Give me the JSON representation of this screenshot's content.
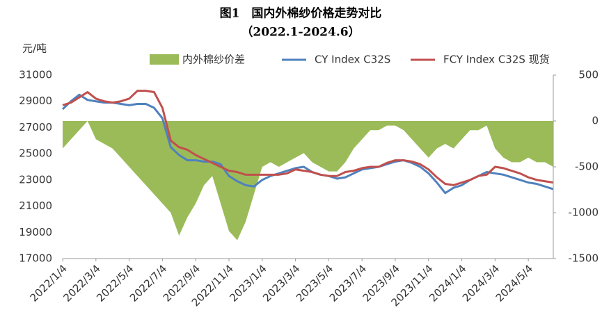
{
  "chart_data": {
    "type": "line",
    "title": "图1　国内外棉纱价格走势对比",
    "subtitle": "（2022.1-2024.6）",
    "y_label": "元/吨",
    "categories": [
      "2022/1/4",
      null,
      null,
      null,
      "2022/3/4",
      null,
      null,
      null,
      "2022/5/4",
      null,
      null,
      null,
      "2022/7/4",
      null,
      null,
      null,
      "2022/9/4",
      null,
      null,
      null,
      "2022/11/4",
      null,
      null,
      null,
      "2023/1/4",
      null,
      null,
      null,
      "2023/3/4",
      null,
      null,
      null,
      "2023/5/4",
      null,
      null,
      null,
      "2023/7/4",
      null,
      null,
      null,
      "2023/9/4",
      null,
      null,
      null,
      "2023/11/4",
      null,
      null,
      null,
      "2024/1/4",
      null,
      null,
      null,
      "2024/3/4",
      null,
      null,
      null,
      "2024/5/4",
      null,
      null,
      null
    ],
    "ylim": [
      17000,
      31000
    ],
    "yticks": [
      17000,
      19000,
      21000,
      23000,
      25000,
      27000,
      29000,
      31000
    ],
    "y2lim": [
      -1500,
      500
    ],
    "y2ticks": [
      -1500,
      -1000,
      -500,
      0,
      500
    ],
    "legend": "top",
    "series": [
      {
        "name": "内外棉纱价差",
        "color": "#9bbb59",
        "type": "area",
        "axis": "y2",
        "values": [
          -300,
          -200,
          -100,
          0,
          -200,
          -250,
          -300,
          -400,
          -500,
          -600,
          -700,
          -800,
          -900,
          -1000,
          -1250,
          -1050,
          -900,
          -700,
          -600,
          -900,
          -1200,
          -1300,
          -1100,
          -800,
          -500,
          -450,
          -500,
          -450,
          -400,
          -350,
          -450,
          -500,
          -550,
          -550,
          -450,
          -300,
          -200,
          -100,
          -100,
          -50,
          -50,
          -100,
          -200,
          -300,
          -400,
          -300,
          -250,
          -300,
          -200,
          -100,
          -100,
          -50,
          -300,
          -400,
          -450,
          -450,
          -400,
          -450,
          -450,
          -500
        ]
      },
      {
        "name": "CY Index C32S",
        "color": "#4f81bd",
        "values": [
          28400,
          29000,
          29500,
          29100,
          29000,
          28900,
          28900,
          28800,
          28700,
          28800,
          28800,
          28500,
          27700,
          25500,
          24900,
          24500,
          24500,
          24400,
          24400,
          24200,
          23300,
          22900,
          22600,
          22500,
          23000,
          23300,
          23500,
          23700,
          23900,
          24000,
          23600,
          23400,
          23300,
          23100,
          23200,
          23500,
          23800,
          23900,
          24000,
          24200,
          24400,
          24500,
          24300,
          24000,
          23500,
          22800,
          22000,
          22400,
          22600,
          23000,
          23300,
          23600,
          23500,
          23400,
          23200,
          23000,
          22800,
          22700,
          22500,
          22300
        ]
      },
      {
        "name": "FCY Index C32S 现货",
        "color": "#c0504d",
        "values": [
          28700,
          28900,
          29300,
          29700,
          29200,
          29000,
          28900,
          29000,
          29200,
          29800,
          29800,
          29700,
          28500,
          26000,
          25500,
          25300,
          24900,
          24600,
          24300,
          24000,
          23700,
          23600,
          23400,
          23400,
          23400,
          23400,
          23400,
          23500,
          23800,
          23700,
          23600,
          23400,
          23300,
          23300,
          23600,
          23700,
          23900,
          24000,
          24000,
          24300,
          24500,
          24500,
          24400,
          24200,
          23800,
          23200,
          22700,
          22600,
          22800,
          23000,
          23300,
          23400,
          24000,
          23900,
          23700,
          23500,
          23200,
          23000,
          22900,
          22800
        ]
      }
    ]
  }
}
